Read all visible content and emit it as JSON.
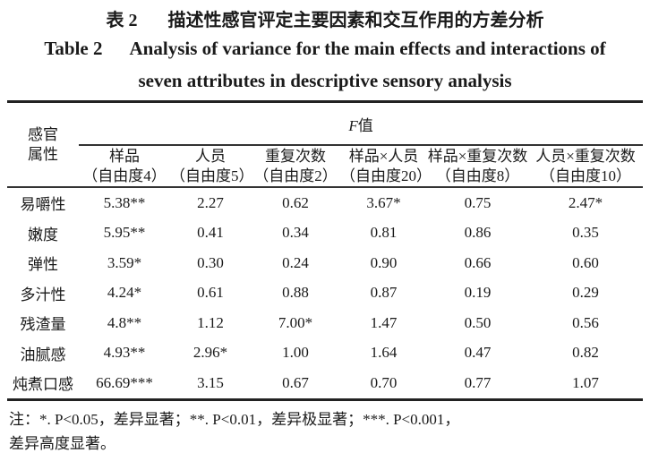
{
  "title": {
    "cn_label": "表 2",
    "cn_text": "描述性感官评定主要因素和交互作用的方差分析",
    "en_label": "Table 2",
    "en_text_line1": "Analysis of variance for the main effects and interactions of",
    "en_text_line2": "seven attributes in descriptive sensory analysis"
  },
  "table": {
    "row_header": "感官属性",
    "group_header_italic": "F",
    "group_header": "值",
    "columns": [
      {
        "name": "样品",
        "df": "（自由度4）"
      },
      {
        "name": "人员",
        "df": "（自由度5）"
      },
      {
        "name": "重复次数",
        "df": "（自由度2）"
      },
      {
        "name": "样品×人员",
        "df": "（自由度20）"
      },
      {
        "name": "样品×重复次数",
        "df": "（自由度8）"
      },
      {
        "name": "人员×重复次数",
        "df": "（自由度10）"
      }
    ],
    "rows": [
      {
        "attr": "易嚼性",
        "values": [
          "5.38**",
          "2.27",
          "0.62",
          "3.67*",
          "0.75",
          "2.47*"
        ]
      },
      {
        "attr": "嫩度",
        "values": [
          "5.95**",
          "0.41",
          "0.34",
          "0.81",
          "0.86",
          "0.35"
        ]
      },
      {
        "attr": "弹性",
        "values": [
          "3.59*",
          "0.30",
          "0.24",
          "0.90",
          "0.66",
          "0.60"
        ]
      },
      {
        "attr": "多汁性",
        "values": [
          "4.24*",
          "0.61",
          "0.88",
          "0.87",
          "0.19",
          "0.29"
        ]
      },
      {
        "attr": "残渣量",
        "values": [
          "4.8**",
          "1.12",
          "7.00*",
          "1.47",
          "0.50",
          "0.56"
        ]
      },
      {
        "attr": "油腻感",
        "values": [
          "4.93**",
          "2.96*",
          "1.00",
          "1.64",
          "0.47",
          "0.82"
        ]
      },
      {
        "attr": "炖煮口感",
        "values": [
          "66.69***",
          "3.15",
          "0.67",
          "0.70",
          "0.77",
          "1.07"
        ]
      }
    ]
  },
  "note": {
    "line1": "注：*. P<0.05，差异显著；**. P<0.01，差异极显著；***. P<0.001，",
    "line2": "差异高度显著。"
  }
}
